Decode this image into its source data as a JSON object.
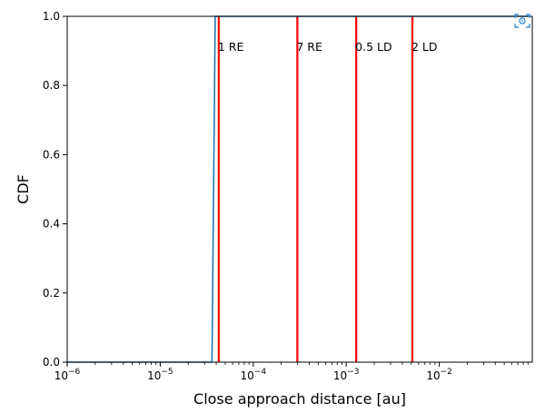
{
  "chart_data": {
    "type": "line",
    "xscale": "log",
    "xlim": [
      1e-06,
      0.1
    ],
    "ylim": [
      0,
      1
    ],
    "xlabel": "Close approach distance [au]",
    "ylabel": "CDF",
    "x_ticks": [
      {
        "value": 1e-06,
        "base": "10",
        "exp": "−6"
      },
      {
        "value": 1e-05,
        "base": "10",
        "exp": "−5"
      },
      {
        "value": 0.0001,
        "base": "10",
        "exp": "−4"
      },
      {
        "value": 0.001,
        "base": "10",
        "exp": "−3"
      },
      {
        "value": 0.01,
        "base": "10",
        "exp": "−2"
      }
    ],
    "y_ticks": [
      "0.0",
      "0.2",
      "0.4",
      "0.6",
      "0.8",
      "1.0"
    ],
    "series": [
      {
        "color": "#1f77b4",
        "x": [
          1e-06,
          3.6e-05,
          3.9e-05,
          0.09
        ],
        "y": [
          0.0,
          0.0,
          1.0,
          1.0
        ]
      }
    ],
    "vlines": [
      {
        "label": "1 RE",
        "x": 4.26e-05,
        "color": "#ff0000"
      },
      {
        "label": "7 RE",
        "x": 0.000298,
        "color": "#ff0000"
      },
      {
        "label": "0.5 LD",
        "x": 0.00128,
        "color": "#ff0000"
      },
      {
        "label": "2 LD",
        "x": 0.00514,
        "color": "#ff0000"
      }
    ],
    "grid": false,
    "legend": "none"
  },
  "toolbar": {
    "icon": "focus-icon"
  }
}
